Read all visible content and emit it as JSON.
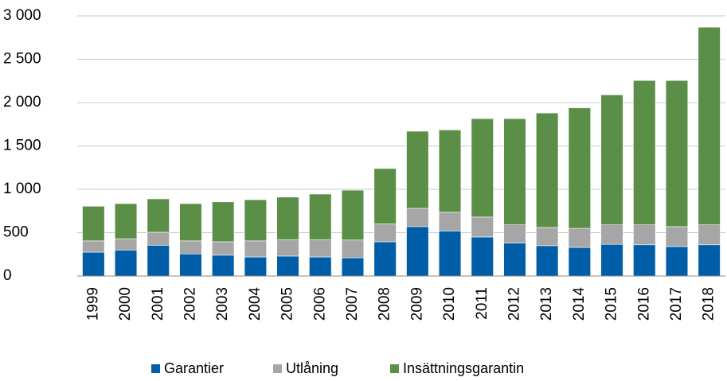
{
  "chart_data": {
    "type": "stacked-bar",
    "categories": [
      "1999",
      "2000",
      "2001",
      "2002",
      "2003",
      "2004",
      "2005",
      "2006",
      "2007",
      "2008",
      "2009",
      "2010",
      "2011",
      "2012",
      "2013",
      "2014",
      "2015",
      "2016",
      "2017",
      "2018"
    ],
    "series": [
      {
        "name": "Garantier",
        "color": "#005ea8",
        "values": [
          275,
          300,
          355,
          255,
          240,
          220,
          230,
          220,
          210,
          395,
          570,
          520,
          450,
          380,
          350,
          330,
          365,
          360,
          340,
          360
        ]
      },
      {
        "name": "Utlåning",
        "color": "#a6a6a6",
        "values": [
          130,
          130,
          150,
          150,
          155,
          185,
          190,
          200,
          205,
          205,
          210,
          215,
          230,
          210,
          210,
          220,
          225,
          230,
          230,
          230
        ]
      },
      {
        "name": "Insättningsgarantin",
        "color": "#5b8f47",
        "values": [
          400,
          405,
          385,
          430,
          460,
          475,
          490,
          525,
          575,
          640,
          890,
          950,
          1135,
          1225,
          1320,
          1390,
          1500,
          1665,
          1685,
          2280
        ]
      }
    ],
    "ylim": [
      0,
      3000
    ],
    "yticks": [
      0,
      500,
      {
        "value": 1000,
        "label": "1 000"
      },
      {
        "value": 1500,
        "label": "1 500"
      },
      {
        "value": 2000,
        "label": "2 000"
      },
      {
        "value": 2500,
        "label": "2 500"
      },
      {
        "value": 3000,
        "label": "3 000"
      }
    ],
    "grid": true,
    "legend": "bottom"
  }
}
